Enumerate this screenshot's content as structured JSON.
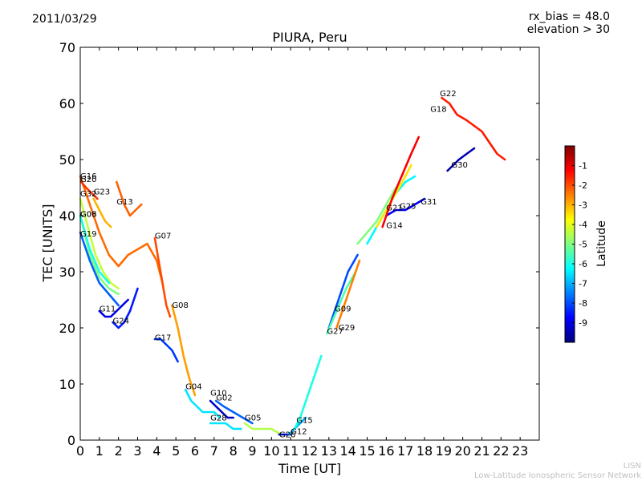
{
  "header": {
    "date": "2011/03/29",
    "rx_bias": "rx_bias = 48.0",
    "elevation": "elevation > 30"
  },
  "watermark": {
    "line1": "LISN",
    "line2": "Low-Latitude Ionospheric Sensor Network"
  },
  "chart_data": {
    "type": "line",
    "title": "PIURA, Peru",
    "xlabel": "Time [UT]",
    "ylabel": "TEC [UNITS]",
    "xlim": [
      0,
      24
    ],
    "ylim": [
      0,
      70
    ],
    "xticks": [
      0,
      1,
      2,
      3,
      4,
      5,
      6,
      7,
      8,
      9,
      10,
      11,
      12,
      13,
      14,
      15,
      16,
      17,
      18,
      19,
      20,
      21,
      22,
      23
    ],
    "yticks": [
      0,
      10,
      20,
      30,
      40,
      50,
      60,
      70
    ],
    "grid": false,
    "colorbar": {
      "label": "Latitude",
      "range": [
        -10,
        0
      ],
      "ticks": [
        -1,
        -2,
        -3,
        -4,
        -5,
        -6,
        -7,
        -8,
        -9
      ],
      "colormap": [
        "#00007f",
        "#0000ff",
        "#007fff",
        "#00ffff",
        "#7fff7f",
        "#ffff00",
        "#ff7f00",
        "#ff0000",
        "#7f0000"
      ]
    },
    "series": [
      {
        "name": "G16",
        "lat": -2.3,
        "x": [
          0.0,
          0.5,
          1.0,
          1.5,
          2.0,
          2.5,
          3.0,
          3.5,
          4.0,
          4.3
        ],
        "y": [
          47,
          42,
          37,
          33,
          31,
          33,
          34,
          35,
          32,
          28
        ],
        "label_at": [
          0.0,
          46.6
        ]
      },
      {
        "name": "G20",
        "lat": -1.7,
        "x": [
          0.05,
          0.3,
          0.6,
          0.9
        ],
        "y": [
          46,
          45,
          44,
          43
        ],
        "label_at": [
          0.0,
          46.0
        ]
      },
      {
        "name": "G23",
        "lat": -3.0,
        "x": [
          0.7,
          1.0,
          1.3,
          1.6
        ],
        "y": [
          43,
          41,
          39,
          38
        ],
        "label_at": [
          0.7,
          43.8
        ]
      },
      {
        "name": "G32",
        "lat": -4.3,
        "x": [
          0.0,
          0.4,
          0.8,
          1.2,
          1.6,
          2.0
        ],
        "y": [
          43,
          38,
          33,
          30,
          28,
          27
        ],
        "label_at": [
          0.0,
          43.4
        ]
      },
      {
        "name": "G13",
        "lat": -2.2,
        "x": [
          1.9,
          2.3,
          2.6,
          2.9,
          3.2
        ],
        "y": [
          46,
          42,
          40,
          41,
          42
        ],
        "label_at": [
          1.9,
          42.0
        ]
      },
      {
        "name": "G06",
        "lat": -5.0,
        "x": [
          0.0,
          0.5,
          1.0,
          1.5,
          2.0
        ],
        "y": [
          40,
          33,
          29,
          27,
          26
        ],
        "label_at": [
          0.0,
          39.8
        ]
      },
      {
        "name": "G03",
        "lat": -6.0,
        "x": [
          0.0,
          0.5,
          1.0,
          1.5
        ],
        "y": [
          40,
          34,
          30,
          28
        ],
        "label_at": [
          0.0,
          39.8
        ]
      },
      {
        "name": "G19",
        "lat": -7.8,
        "x": [
          0.0,
          0.5,
          1.0,
          1.5,
          2.0
        ],
        "y": [
          37,
          32,
          28,
          26,
          24
        ],
        "label_at": [
          0.0,
          36.3
        ]
      },
      {
        "name": "G07",
        "lat": -2.0,
        "x": [
          3.9,
          4.1,
          4.3,
          4.5,
          4.7
        ],
        "y": [
          36,
          32,
          28,
          24,
          22
        ],
        "label_at": [
          3.9,
          35.9
        ]
      },
      {
        "name": "G11",
        "lat": -9.0,
        "x": [
          1.0,
          1.3,
          1.6,
          1.9,
          2.2,
          2.5
        ],
        "y": [
          23,
          22,
          22,
          23,
          24,
          25
        ],
        "label_at": [
          1.0,
          22.9
        ]
      },
      {
        "name": "G24",
        "lat": -8.5,
        "x": [
          1.7,
          2.0,
          2.3,
          2.6,
          3.0
        ],
        "y": [
          21,
          20,
          21,
          23,
          27
        ],
        "label_at": [
          1.7,
          20.8
        ]
      },
      {
        "name": "G08",
        "lat": -2.8,
        "x": [
          4.8,
          5.1,
          5.4,
          5.7,
          6.0
        ],
        "y": [
          24,
          20,
          15,
          11,
          8
        ],
        "label_at": [
          4.8,
          23.6
        ]
      },
      {
        "name": "G17",
        "lat": -8.2,
        "x": [
          3.9,
          4.2,
          4.5,
          4.8,
          5.1
        ],
        "y": [
          18,
          18,
          17,
          16,
          14
        ],
        "label_at": [
          3.9,
          17.8
        ]
      },
      {
        "name": "G04",
        "lat": -6.5,
        "x": [
          5.5,
          5.8,
          6.1,
          6.4,
          6.7,
          7.0,
          7.3
        ],
        "y": [
          9,
          7,
          6,
          5,
          5,
          5,
          4
        ],
        "label_at": [
          5.5,
          9.1
        ]
      },
      {
        "name": "G10",
        "lat": -9.3,
        "x": [
          6.8,
          7.1,
          7.4,
          7.7,
          8.0
        ],
        "y": [
          7,
          6,
          5,
          4,
          4
        ],
        "label_at": [
          6.8,
          7.9
        ]
      },
      {
        "name": "G02",
        "lat": -7.8,
        "x": [
          7.1,
          7.5,
          8.0,
          8.5,
          9.0
        ],
        "y": [
          7,
          6,
          5,
          4,
          3
        ],
        "label_at": [
          7.1,
          7.1
        ]
      },
      {
        "name": "G28",
        "lat": -6.5,
        "x": [
          6.8,
          7.2,
          7.6,
          8.0,
          8.4
        ],
        "y": [
          3,
          3,
          3,
          2,
          2
        ],
        "label_at": [
          6.8,
          3.5
        ]
      },
      {
        "name": "G05",
        "lat": -4.5,
        "x": [
          8.6,
          9.0,
          9.5,
          10.0,
          10.5,
          11.0
        ],
        "y": [
          3,
          2,
          2,
          2,
          1,
          1
        ],
        "label_at": [
          8.6,
          3.5
        ]
      },
      {
        "name": "G26",
        "lat": -9.0,
        "x": [
          10.4,
          10.7,
          11.0
        ],
        "y": [
          1,
          1,
          1
        ],
        "label_at": [
          10.4,
          0.5
        ]
      },
      {
        "name": "G12",
        "lat": -7.0,
        "x": [
          10.9,
          11.2,
          11.5,
          11.8
        ],
        "y": [
          1,
          2,
          3,
          4
        ],
        "label_at": [
          11.0,
          1.1
        ]
      },
      {
        "name": "G15",
        "lat": -6.0,
        "x": [
          11.2,
          11.5,
          11.8,
          12.2,
          12.6
        ],
        "y": [
          2,
          4,
          7,
          11,
          15
        ],
        "label_at": [
          11.3,
          3.1
        ]
      },
      {
        "name": "G09",
        "lat": -8.0,
        "x": [
          13.0,
          13.5,
          14.0,
          14.5
        ],
        "y": [
          20,
          25,
          30,
          33
        ],
        "label_at": [
          13.3,
          22.9
        ]
      },
      {
        "name": "G27",
        "lat": -5.5,
        "x": [
          12.9,
          13.4,
          13.9,
          14.4
        ],
        "y": [
          19,
          23,
          27,
          30
        ],
        "label_at": [
          12.9,
          18.9
        ]
      },
      {
        "name": "G29",
        "lat": -2.5,
        "x": [
          13.4,
          13.8,
          14.2,
          14.6
        ],
        "y": [
          20,
          24,
          28,
          32
        ],
        "label_at": [
          13.5,
          19.6
        ]
      },
      {
        "name": "G14",
        "lat": -5.0,
        "x": [
          14.5,
          15.0,
          15.5,
          16.0,
          16.5
        ],
        "y": [
          35,
          37,
          39,
          42,
          45
        ],
        "label_at": [
          16.0,
          37.8
        ]
      },
      {
        "name": "G21",
        "lat": -6.3,
        "x": [
          15.0,
          15.5,
          16.0,
          16.5,
          17.0,
          17.5
        ],
        "y": [
          35,
          38,
          41,
          44,
          46,
          47
        ],
        "label_at": [
          16.0,
          40.9
        ]
      },
      {
        "name": "G25",
        "lat": -3.5,
        "x": [
          15.5,
          16.0,
          16.5,
          17.0,
          17.3
        ],
        "y": [
          38,
          41,
          44,
          47,
          49
        ],
        "label_at": [
          16.7,
          41.2
        ]
      },
      {
        "name": "G31",
        "lat": -8.8,
        "x": [
          16.0,
          16.5,
          17.0,
          17.5,
          18.0
        ],
        "y": [
          40,
          41,
          41,
          42,
          43
        ],
        "label_at": [
          17.8,
          42.0
        ]
      },
      {
        "name": "G18",
        "lat": -1.2,
        "x": [
          15.8,
          16.3,
          16.8,
          17.3,
          17.7
        ],
        "y": [
          38,
          43,
          47,
          51,
          54
        ],
        "label_at": [
          18.3,
          58.5
        ]
      },
      {
        "name": "G22",
        "lat": -1.5,
        "x": [
          18.9,
          19.3,
          19.7,
          20.2,
          20.6,
          21.0,
          21.4,
          21.8,
          22.2
        ],
        "y": [
          61,
          60,
          58,
          57,
          56,
          55,
          53,
          51,
          50
        ],
        "label_at": [
          18.8,
          61.3
        ]
      },
      {
        "name": "G30",
        "lat": -9.5,
        "x": [
          19.2,
          19.5,
          19.8,
          20.2,
          20.6
        ],
        "y": [
          48,
          49,
          50,
          51,
          52
        ],
        "label_at": [
          19.4,
          48.6
        ]
      }
    ]
  }
}
